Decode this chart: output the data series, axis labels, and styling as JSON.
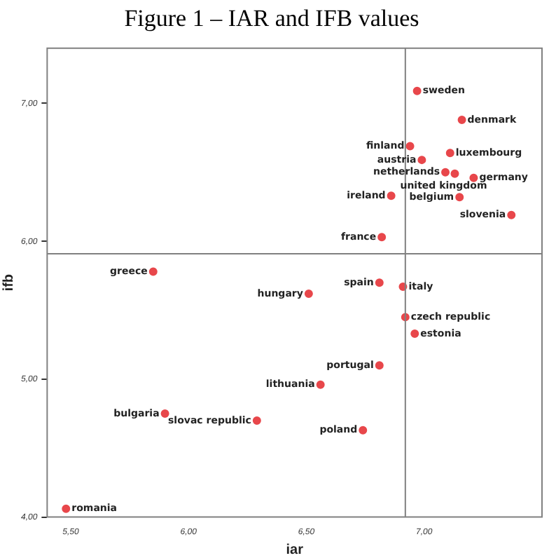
{
  "chart_data": {
    "type": "scatter",
    "title": "Figure 1 – IAR and IFB values",
    "xlabel": "iar",
    "ylabel": "ifb",
    "x": [
      6.97,
      7.16,
      6.94,
      7.11,
      6.99,
      7.09,
      7.13,
      7.21,
      6.86,
      7.15,
      7.37,
      6.82,
      5.85,
      6.81,
      6.91,
      6.51,
      6.92,
      6.96,
      6.81,
      6.56,
      5.9,
      6.29,
      6.74,
      5.48
    ],
    "values": [
      7.09,
      6.88,
      6.69,
      6.64,
      6.59,
      6.5,
      6.49,
      6.46,
      6.33,
      6.32,
      6.19,
      6.03,
      5.78,
      5.7,
      5.67,
      5.62,
      5.45,
      5.33,
      5.1,
      4.96,
      4.75,
      4.7,
      4.63,
      4.06
    ],
    "color": "#e8474b",
    "marker": "circle",
    "grid": false,
    "legend": false,
    "xlim": [
      5.4,
      7.5
    ],
    "xticks": [
      {
        "value": 5.5,
        "label": "5,50"
      },
      {
        "value": 6,
        "label": "6,00"
      },
      {
        "value": 6.5,
        "label": "6,50"
      },
      {
        "value": 7,
        "label": "7,00"
      }
    ],
    "ylim": [
      4,
      7.4
    ],
    "yticks": [
      {
        "value": 4,
        "label": "4,00"
      },
      {
        "value": 5,
        "label": "5,00"
      },
      {
        "value": 6,
        "label": "6,00"
      },
      {
        "value": 7,
        "label": "7,00"
      }
    ],
    "ref_lines": [
      {
        "axis": "x",
        "value": 6.92,
        "color": "#808080"
      },
      {
        "axis": "y",
        "value": 5.91,
        "color": "#808080"
      }
    ],
    "annotations": [
      {
        "text": "sweden",
        "x": 6.97,
        "y": 7.09
      },
      {
        "text": "denmark",
        "x": 7.16,
        "y": 6.88
      },
      {
        "text": "finland",
        "x": 6.94,
        "y": 6.69
      },
      {
        "text": "luxembourg",
        "x": 7.11,
        "y": 6.64
      },
      {
        "text": "austria",
        "x": 6.99,
        "y": 6.59
      },
      {
        "text": "netherlands",
        "x": 7.09,
        "y": 6.5
      },
      {
        "text": "united kingdom",
        "x": 7.13,
        "y": 6.49
      },
      {
        "text": "germany",
        "x": 7.21,
        "y": 6.46
      },
      {
        "text": "ireland",
        "x": 6.86,
        "y": 6.33
      },
      {
        "text": "belgium",
        "x": 7.15,
        "y": 6.32
      },
      {
        "text": "slovenia",
        "x": 7.37,
        "y": 6.19
      },
      {
        "text": "france",
        "x": 6.82,
        "y": 6.03
      },
      {
        "text": "greece",
        "x": 5.85,
        "y": 5.78
      },
      {
        "text": "spain",
        "x": 6.81,
        "y": 5.7
      },
      {
        "text": "italy",
        "x": 6.91,
        "y": 5.67
      },
      {
        "text": "hungary",
        "x": 6.51,
        "y": 5.62
      },
      {
        "text": "czech republic",
        "x": 6.92,
        "y": 5.45
      },
      {
        "text": "estonia",
        "x": 6.96,
        "y": 5.33
      },
      {
        "text": "portugal",
        "x": 6.81,
        "y": 5.1
      },
      {
        "text": "lithuania",
        "x": 6.56,
        "y": 4.96
      },
      {
        "text": "bulgaria",
        "x": 5.9,
        "y": 4.75
      },
      {
        "text": "slovac republic",
        "x": 6.29,
        "y": 4.7
      },
      {
        "text": "poland",
        "x": 6.74,
        "y": 4.63
      },
      {
        "text": "romania",
        "x": 5.48,
        "y": 4.06
      }
    ]
  }
}
